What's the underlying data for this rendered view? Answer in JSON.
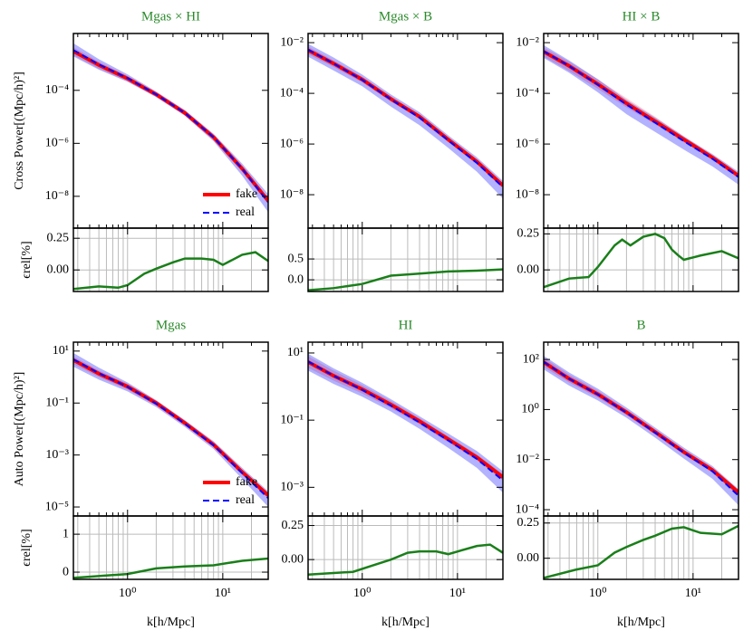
{
  "chart_data": [
    {
      "type": "line",
      "title": "Mgas × HI",
      "ylabel": "Cross Power[(Mpc/h)²]",
      "log_x": true,
      "log_y": true,
      "xlim": [
        0.27,
        30
      ],
      "xticks": [
        {
          "value": 1,
          "label": "10⁰"
        },
        {
          "value": 10,
          "label": "10¹"
        }
      ],
      "xminorticks": [
        0.3,
        0.4,
        0.5,
        0.6,
        0.7,
        0.8,
        0.9,
        2,
        3,
        4,
        5,
        6,
        7,
        8,
        9,
        20,
        30
      ],
      "ylim": [
        6.3e-10,
        0.014
      ],
      "yticks": [
        {
          "value": 0.0001,
          "label": "10⁻⁴"
        },
        {
          "value": 1e-06,
          "label": "10⁻⁶"
        },
        {
          "value": 1e-08,
          "label": "10⁻⁸"
        }
      ],
      "legend": "lower right",
      "x": [
        0.27,
        0.5,
        1,
        2,
        4,
        8,
        16,
        30
      ],
      "series": [
        {
          "name": "fake",
          "color": "#ff0000",
          "values": [
            0.003,
            0.0009,
            0.00028,
            7e-05,
            1.4e-05,
            1.7e-06,
            1.1e-07,
            6.8e-09
          ],
          "lower": [
            0.0021,
            0.00065,
            0.00022,
            5.8e-05,
            1.2e-05,
            1.4e-06,
            9e-08,
            5e-09
          ],
          "upper": [
            0.0042,
            0.0012,
            0.00035,
            8.5e-05,
            1.6e-05,
            2e-06,
            1.3e-07,
            8.5e-09
          ]
        },
        {
          "name": "real",
          "color": "#0000ff",
          "values": [
            0.0033,
            0.00095,
            0.00029,
            7e-05,
            1.4e-05,
            1.7e-06,
            1.1e-07,
            6e-09
          ],
          "lower": [
            0.0019,
            0.0006,
            0.00021,
            5.5e-05,
            1.1e-05,
            1.2e-06,
            6e-08,
            2.5e-09
          ],
          "upper": [
            0.006,
            0.0015,
            0.0004,
            9e-05,
            1.8e-05,
            2.3e-06,
            1.7e-07,
            1.2e-08
          ]
        }
      ],
      "residual": {
        "ylabel": "ϵrel[%]",
        "color": "#1a7f1a",
        "grid": true,
        "ylim": [
          -0.17,
          0.33
        ],
        "yticks": [
          0.25,
          {
            "value": 0,
            "label": "0.00"
          }
        ],
        "x": [
          0.27,
          0.5,
          0.8,
          1,
          1.5,
          2,
          3,
          4,
          6,
          8,
          10,
          16,
          22,
          30
        ],
        "values": [
          -0.15,
          -0.13,
          -0.14,
          -0.12,
          -0.03,
          0.01,
          0.06,
          0.09,
          0.09,
          0.08,
          0.04,
          0.12,
          0.14,
          0.07
        ]
      }
    },
    {
      "type": "line",
      "title": "Mgas × B",
      "log_x": true,
      "log_y": true,
      "xlim": [
        0.27,
        30
      ],
      "xticks": [
        {
          "value": 1,
          "label": "10⁰"
        },
        {
          "value": 10,
          "label": "10¹"
        }
      ],
      "xminorticks": [
        0.3,
        0.4,
        0.5,
        0.6,
        0.7,
        0.8,
        0.9,
        2,
        3,
        4,
        5,
        6,
        7,
        8,
        9,
        20,
        30
      ],
      "ylim": [
        4.8e-10,
        0.023
      ],
      "yticks": [
        {
          "value": 0.01,
          "label": "10⁻²"
        },
        {
          "value": 0.0001,
          "label": "10⁻⁴"
        },
        {
          "value": 1e-06,
          "label": "10⁻⁶"
        },
        {
          "value": 1e-08,
          "label": "10⁻⁸"
        }
      ],
      "x": [
        0.27,
        0.5,
        1,
        2,
        4,
        8,
        16,
        30
      ],
      "series": [
        {
          "color": "#ff0000",
          "values": [
            0.005,
            0.0015,
            0.00035,
            6e-05,
            1.2e-05,
            1.5e-06,
            2e-07,
            2.3e-08
          ],
          "lower": [
            0.0035,
            0.0011,
            0.00027,
            4.8e-05,
            1e-05,
            1.3e-06,
            1.7e-07,
            1.9e-08
          ],
          "upper": [
            0.007,
            0.002,
            0.00045,
            7.5e-05,
            1.4e-05,
            1.8e-06,
            2.4e-07,
            2.8e-08
          ]
        },
        {
          "color": "#0000ff",
          "values": [
            0.0053,
            0.0015,
            0.00034,
            5.8e-05,
            1.1e-05,
            1.4e-06,
            1.8e-07,
            2e-08
          ],
          "lower": [
            0.0028,
            0.0008,
            0.00019,
            3e-05,
            5.5e-06,
            7e-07,
            8e-08,
            7e-09
          ],
          "upper": [
            0.009,
            0.0026,
            0.00055,
            9e-05,
            1.8e-05,
            2.2e-06,
            3e-07,
            3.5e-08
          ]
        }
      ],
      "residual": {
        "color": "#1a7f1a",
        "grid": true,
        "ylim": [
          -0.28,
          1.24
        ],
        "yticks": [
          0.5,
          {
            "value": 0,
            "label": "0.0"
          }
        ],
        "x": [
          0.27,
          0.5,
          1,
          2,
          4,
          8,
          16,
          30
        ],
        "values": [
          -0.25,
          -0.2,
          -0.1,
          0.1,
          0.15,
          0.2,
          0.22,
          0.25
        ]
      }
    },
    {
      "type": "line",
      "title": "HI × B",
      "log_x": true,
      "log_y": true,
      "xlim": [
        0.27,
        30
      ],
      "xticks": [
        {
          "value": 1,
          "label": "10⁰"
        },
        {
          "value": 10,
          "label": "10¹"
        }
      ],
      "xminorticks": [
        0.3,
        0.4,
        0.5,
        0.6,
        0.7,
        0.8,
        0.9,
        2,
        3,
        4,
        5,
        6,
        7,
        8,
        9,
        20,
        30
      ],
      "ylim": [
        4.8e-10,
        0.023
      ],
      "yticks": [
        {
          "value": 0.01,
          "label": "10⁻²"
        },
        {
          "value": 0.0001,
          "label": "10⁻⁴"
        },
        {
          "value": 1e-06,
          "label": "10⁻⁶"
        },
        {
          "value": 1e-08,
          "label": "10⁻⁸"
        }
      ],
      "x": [
        0.27,
        0.5,
        1,
        2,
        4,
        8,
        16,
        30
      ],
      "series": [
        {
          "color": "#ff0000",
          "values": [
            0.0044,
            0.0012,
            0.00023,
            4e-05,
            7.8e-06,
            1.5e-06,
            2.9e-07,
            5.6e-08
          ],
          "lower": [
            0.0028,
            0.00075,
            0.00015,
            2.8e-05,
            6e-06,
            1.2e-06,
            2.4e-07,
            4.5e-08
          ],
          "upper": [
            0.0065,
            0.0018,
            0.00036,
            6.5e-05,
            1.2e-05,
            2e-06,
            3.6e-07,
            7e-08
          ]
        },
        {
          "color": "#0000ff",
          "values": [
            0.0046,
            0.0012,
            0.00022,
            3.6e-05,
            7e-06,
            1.3e-06,
            2.6e-07,
            5e-08
          ],
          "lower": [
            0.0025,
            0.00065,
            0.00011,
            1.5e-05,
            3e-06,
            6e-07,
            1.3e-07,
            2.5e-08
          ],
          "upper": [
            0.008,
            0.002,
            0.00036,
            5.5e-05,
            1.1e-05,
            2e-06,
            4e-07,
            8e-08
          ]
        }
      ],
      "residual": {
        "color": "#1a7f1a",
        "grid": true,
        "ylim": [
          -0.15,
          0.29
        ],
        "yticks": [
          0.25,
          {
            "value": 0,
            "label": "0.00"
          }
        ],
        "x": [
          0.27,
          0.5,
          0.8,
          1,
          1.5,
          1.8,
          2.2,
          3,
          4,
          5,
          6,
          7,
          8,
          12,
          20,
          30
        ],
        "values": [
          -0.12,
          -0.06,
          -0.05,
          0.02,
          0.17,
          0.21,
          0.17,
          0.23,
          0.25,
          0.22,
          0.14,
          0.1,
          0.07,
          0.1,
          0.13,
          0.08
        ]
      }
    },
    {
      "type": "line",
      "title": "Mgas",
      "ylabel": "Auto Power[(Mpc/h)²]",
      "xlabel": "k[h/Mpc]",
      "log_x": true,
      "log_y": true,
      "xlim": [
        0.27,
        30
      ],
      "xticks": [
        {
          "value": 1,
          "label": "10⁰"
        },
        {
          "value": 10,
          "label": "10¹"
        }
      ],
      "xminorticks": [
        0.3,
        0.4,
        0.5,
        0.6,
        0.7,
        0.8,
        0.9,
        2,
        3,
        4,
        5,
        6,
        7,
        8,
        9,
        20,
        30
      ],
      "ylim": [
        4.5e-06,
        22
      ],
      "yticks": [
        {
          "value": 10,
          "label": "10¹"
        },
        {
          "value": 0.1,
          "label": "10⁻¹"
        },
        {
          "value": 0.001,
          "label": "10⁻³"
        },
        {
          "value": 1e-05,
          "label": "10⁻⁵"
        }
      ],
      "legend": "lower right",
      "x": [
        0.27,
        0.5,
        1,
        2,
        4,
        8,
        16,
        30
      ],
      "series": [
        {
          "name": "fake",
          "color": "#ff0000",
          "values": [
            4.5,
            1.35,
            0.43,
            0.1,
            0.017,
            0.0025,
            0.00022,
            2.8e-05
          ],
          "lower": [
            3.1,
            1,
            0.33,
            0.08,
            0.014,
            0.0021,
            0.00018,
            2.2e-05
          ],
          "upper": [
            6.2,
            1.8,
            0.55,
            0.12,
            0.02,
            0.0029,
            0.00026,
            3.4e-05
          ]
        },
        {
          "name": "real",
          "color": "#0000ff",
          "values": [
            4.8,
            1.4,
            0.42,
            0.095,
            0.016,
            0.0024,
            0.0002,
            2.2e-05
          ],
          "lower": [
            2.5,
            0.8,
            0.28,
            0.07,
            0.012,
            0.0017,
            0.00012,
            1e-05
          ],
          "upper": [
            8.5,
            2.3,
            0.62,
            0.13,
            0.022,
            0.0034,
            0.00032,
            4e-05
          ]
        }
      ],
      "residual": {
        "ylabel": "ϵrel[%]",
        "color": "#1a7f1a",
        "grid": true,
        "ylim": [
          -0.19,
          1.48
        ],
        "yticks": [
          1,
          0
        ],
        "x": [
          0.27,
          1,
          2,
          4,
          8,
          16,
          30
        ],
        "values": [
          -0.15,
          -0.05,
          0.1,
          0.15,
          0.18,
          0.3,
          0.36
        ]
      }
    },
    {
      "type": "line",
      "title": "HI",
      "xlabel": "k[h/Mpc]",
      "log_x": true,
      "log_y": true,
      "xlim": [
        0.27,
        30
      ],
      "xticks": [
        {
          "value": 1,
          "label": "10⁰"
        },
        {
          "value": 10,
          "label": "10¹"
        }
      ],
      "xminorticks": [
        0.3,
        0.4,
        0.5,
        0.6,
        0.7,
        0.8,
        0.9,
        2,
        3,
        4,
        5,
        6,
        7,
        8,
        9,
        20,
        30
      ],
      "ylim": [
        0.00014,
        21
      ],
      "yticks": [
        {
          "value": 10,
          "label": "10¹"
        },
        {
          "value": 0.1,
          "label": "10⁻¹"
        },
        {
          "value": 0.001,
          "label": "10⁻³"
        }
      ],
      "x": [
        0.27,
        0.5,
        1,
        2,
        4,
        8,
        16,
        30
      ],
      "series": [
        {
          "color": "#ff0000",
          "values": [
            5.4,
            2.1,
            0.83,
            0.29,
            0.093,
            0.027,
            0.0078,
            0.002
          ],
          "lower": [
            3.6,
            1.5,
            0.62,
            0.23,
            0.075,
            0.022,
            0.0064,
            0.0016
          ],
          "upper": [
            8,
            3,
            1.1,
            0.37,
            0.115,
            0.033,
            0.0095,
            0.0025
          ]
        },
        {
          "color": "#0000ff",
          "values": [
            5.6,
            2.1,
            0.8,
            0.27,
            0.085,
            0.025,
            0.007,
            0.0016
          ],
          "lower": [
            3,
            1.2,
            0.5,
            0.18,
            0.055,
            0.015,
            0.0038,
            0.0007
          ],
          "upper": [
            9.5,
            3.5,
            1.3,
            0.42,
            0.13,
            0.04,
            0.012,
            0.003
          ]
        }
      ],
      "residual": {
        "color": "#1a7f1a",
        "grid": true,
        "ylim": [
          -0.145,
          0.32
        ],
        "yticks": [
          0.25,
          {
            "value": 0,
            "label": "0.00"
          }
        ],
        "x": [
          0.27,
          0.8,
          1.2,
          2,
          3,
          4,
          6,
          8,
          16,
          22,
          30
        ],
        "values": [
          -0.11,
          -0.09,
          -0.05,
          0,
          0.05,
          0.06,
          0.06,
          0.04,
          0.1,
          0.11,
          0.05
        ]
      }
    },
    {
      "type": "line",
      "title": "B",
      "xlabel": "k[h/Mpc]",
      "log_x": true,
      "log_y": true,
      "xlim": [
        0.27,
        30
      ],
      "xticks": [
        {
          "value": 1,
          "label": "10⁰"
        },
        {
          "value": 10,
          "label": "10¹"
        }
      ],
      "xminorticks": [
        0.3,
        0.4,
        0.5,
        0.6,
        0.7,
        0.8,
        0.9,
        2,
        3,
        4,
        5,
        6,
        7,
        8,
        9,
        20,
        30
      ],
      "ylim": [
        5.6e-05,
        490
      ],
      "yticks": [
        {
          "value": 100,
          "label": "10²"
        },
        {
          "value": 1,
          "label": "10⁰"
        },
        {
          "value": 0.01,
          "label": "10⁻²"
        },
        {
          "value": 0.0001,
          "label": "10⁻⁴"
        }
      ],
      "x": [
        0.27,
        0.5,
        1,
        2,
        4,
        8,
        16,
        30
      ],
      "series": [
        {
          "color": "#ff0000",
          "values": [
            78,
            17,
            4.1,
            0.78,
            0.126,
            0.02,
            0.0038,
            0.00048
          ],
          "lower": [
            50,
            12,
            3,
            0.6,
            0.1,
            0.016,
            0.003,
            0.00035
          ],
          "upper": [
            120,
            25,
            5.6,
            1,
            0.16,
            0.025,
            0.0046,
            0.00065
          ]
        },
        {
          "color": "#0000ff",
          "values": [
            80,
            17,
            4,
            0.75,
            0.12,
            0.019,
            0.0034,
            0.00036
          ],
          "lower": [
            40,
            9,
            2.3,
            0.47,
            0.075,
            0.011,
            0.0017,
            0.00015
          ],
          "upper": [
            140,
            30,
            6.8,
            1.2,
            0.19,
            0.03,
            0.0055,
            0.00065
          ]
        }
      ],
      "residual": {
        "color": "#1a7f1a",
        "grid": true,
        "ylim": [
          -0.15,
          0.3
        ],
        "yticks": [
          0.25,
          {
            "value": 0,
            "label": "0.00"
          }
        ],
        "x": [
          0.27,
          0.6,
          1,
          1.5,
          2,
          3,
          4,
          6,
          8,
          12,
          20,
          30
        ],
        "values": [
          -0.14,
          -0.08,
          -0.05,
          0.04,
          0.08,
          0.13,
          0.16,
          0.21,
          0.22,
          0.18,
          0.17,
          0.23
        ]
      }
    }
  ]
}
